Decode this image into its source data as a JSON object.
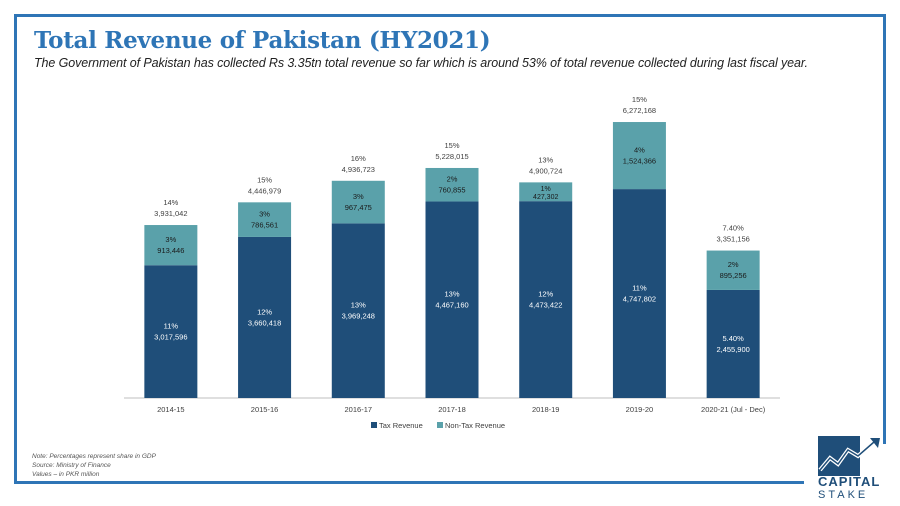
{
  "header": {
    "title": "Total Revenue of Pakistan (HY2021)",
    "subtitle": "The Government of Pakistan has collected Rs 3.35tn total revenue so far which is around 53% of total revenue collected during last fiscal year."
  },
  "notes": {
    "line1": "Note: Percentages represent share in GDP",
    "line2": "Source: Ministry of Finance",
    "line3": "Values – in PKR million"
  },
  "logo": {
    "line1": "CAPITAL",
    "line2": "STAKE"
  },
  "colors": {
    "tax": "#1f4e79",
    "nontax": "#5aa1aa",
    "accent": "#2e75b6"
  },
  "chart_data": {
    "type": "bar",
    "stacked": true,
    "title": "Total Revenue of Pakistan (HY2021)",
    "xlabel": "",
    "ylabel": "",
    "ylim": [
      0,
      7000000
    ],
    "grid": false,
    "legend_position": "bottom",
    "categories": [
      "2014-15",
      "2015-16",
      "2016-17",
      "2017-18",
      "2018-19",
      "2019-20",
      "2020-21 (Jul - Dec)"
    ],
    "series": [
      {
        "name": "Tax Revenue",
        "values": [
          3017596,
          3660418,
          3969248,
          4467160,
          4473422,
          4747802,
          2455900
        ],
        "labels": [
          "3,017,596",
          "3,660,418",
          "3,969,248",
          "4,467,160",
          "4,473,422",
          "4,747,802",
          "2,455,900"
        ],
        "pct": [
          "11%",
          "12%",
          "13%",
          "13%",
          "12%",
          "11%",
          "5.40%"
        ]
      },
      {
        "name": "Non-Tax Revenue",
        "values": [
          913446,
          786561,
          967475,
          760855,
          427302,
          1524366,
          895256
        ],
        "labels": [
          "913,446",
          "786,561",
          "967,475",
          "760,855",
          "427,302",
          "1,524,366",
          "895,256"
        ],
        "pct": [
          "3%",
          "3%",
          "3%",
          "2%",
          "1%",
          "4%",
          "2%"
        ]
      }
    ],
    "totals": {
      "values": [
        3931042,
        4446979,
        4936723,
        5228015,
        4900724,
        6272168,
        3351156
      ],
      "labels": [
        "3,931,042",
        "4,446,979",
        "4,936,723",
        "5,228,015",
        "4,900,724",
        "6,272,168",
        "3,351,156"
      ],
      "pct": [
        "14%",
        "15%",
        "16%",
        "15%",
        "13%",
        "15%",
        "7.40%"
      ]
    }
  }
}
